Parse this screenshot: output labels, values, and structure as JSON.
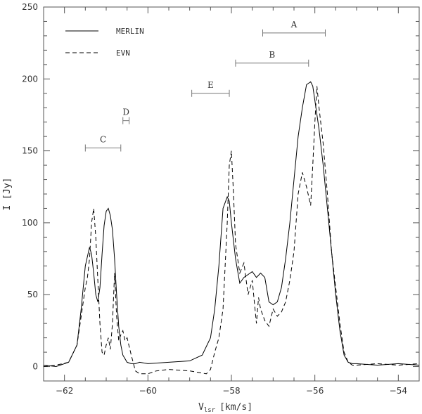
{
  "chart_data": {
    "type": "line",
    "xlabel": "V",
    "xlabel_sub": "lsr",
    "xlabel_unit": "[km/s]",
    "ylabel": "I [Jy]",
    "xlim": [
      -62.5,
      -53.5
    ],
    "ylim": [
      -10,
      250
    ],
    "x_ticks": [
      -62,
      -60,
      -58,
      -56,
      -54
    ],
    "x_tick_labels": [
      "−62",
      "−60",
      "−58",
      "−56",
      "−54"
    ],
    "y_ticks": [
      0,
      50,
      100,
      150,
      200,
      250
    ],
    "y_tick_labels": [
      "0",
      "50",
      "100",
      "150",
      "200",
      "250"
    ],
    "grid": false,
    "legend_position": "top-left",
    "series": [
      {
        "name": "MERLIN",
        "style": "solid",
        "color": "#000000",
        "x": [
          -62.5,
          -62.2,
          -61.9,
          -61.7,
          -61.6,
          -61.5,
          -61.4,
          -61.35,
          -61.3,
          -61.25,
          -61.2,
          -61.15,
          -61.1,
          -61.05,
          -61.0,
          -60.95,
          -60.9,
          -60.85,
          -60.8,
          -60.75,
          -60.7,
          -60.65,
          -60.6,
          -60.5,
          -60.4,
          -60.3,
          -60.2,
          -60.0,
          -59.5,
          -59.0,
          -58.7,
          -58.5,
          -58.4,
          -58.3,
          -58.2,
          -58.1,
          -58.05,
          -58.0,
          -57.9,
          -57.8,
          -57.7,
          -57.6,
          -57.5,
          -57.4,
          -57.3,
          -57.2,
          -57.1,
          -57.0,
          -56.9,
          -56.8,
          -56.7,
          -56.6,
          -56.5,
          -56.4,
          -56.3,
          -56.2,
          -56.1,
          -56.05,
          -56.0,
          -55.9,
          -55.8,
          -55.7,
          -55.6,
          -55.5,
          -55.4,
          -55.3,
          -55.2,
          -55.1,
          -55.0,
          -54.5,
          -54.0,
          -53.5
        ],
        "y": [
          1,
          0,
          3,
          15,
          40,
          70,
          83,
          78,
          65,
          50,
          45,
          55,
          78,
          98,
          108,
          110,
          105,
          95,
          75,
          50,
          28,
          15,
          8,
          3,
          2,
          2,
          3,
          2,
          3,
          4,
          8,
          20,
          40,
          70,
          110,
          118,
          115,
          100,
          75,
          58,
          62,
          64,
          66,
          62,
          65,
          62,
          45,
          43,
          45,
          55,
          75,
          100,
          130,
          160,
          180,
          196,
          198,
          195,
          185,
          165,
          140,
          110,
          80,
          50,
          25,
          8,
          3,
          2,
          2,
          1,
          2,
          1
        ]
      },
      {
        "name": "EVN",
        "style": "dashed",
        "color": "#000000",
        "x": [
          -62.5,
          -62.2,
          -61.9,
          -61.7,
          -61.6,
          -61.5,
          -61.45,
          -61.4,
          -61.35,
          -61.3,
          -61.25,
          -61.2,
          -61.15,
          -61.1,
          -61.05,
          -61.0,
          -60.95,
          -60.9,
          -60.85,
          -60.8,
          -60.75,
          -60.7,
          -60.65,
          -60.6,
          -60.55,
          -60.5,
          -60.4,
          -60.3,
          -60.2,
          -60.0,
          -59.8,
          -59.5,
          -59.0,
          -58.6,
          -58.5,
          -58.4,
          -58.3,
          -58.2,
          -58.15,
          -58.1,
          -58.05,
          -58.0,
          -57.95,
          -57.9,
          -57.8,
          -57.7,
          -57.6,
          -57.5,
          -57.45,
          -57.4,
          -57.35,
          -57.3,
          -57.2,
          -57.1,
          -57.0,
          -56.9,
          -56.8,
          -56.7,
          -56.6,
          -56.5,
          -56.4,
          -56.3,
          -56.2,
          -56.1,
          -56.05,
          -56.0,
          -55.95,
          -55.9,
          -55.8,
          -55.7,
          -55.6,
          -55.5,
          -55.4,
          -55.3,
          -55.2,
          -55.1,
          -55.0,
          -54.5,
          -54.0,
          -53.5
        ],
        "y": [
          0,
          1,
          3,
          15,
          35,
          55,
          62,
          75,
          100,
          110,
          90,
          60,
          30,
          10,
          8,
          15,
          20,
          12,
          30,
          65,
          35,
          18,
          22,
          25,
          18,
          20,
          8,
          -3,
          -5,
          -5,
          -3,
          -2,
          -3,
          -5,
          -2,
          10,
          20,
          40,
          70,
          100,
          140,
          150,
          120,
          85,
          65,
          72,
          50,
          60,
          45,
          30,
          48,
          40,
          32,
          28,
          40,
          35,
          38,
          45,
          60,
          80,
          120,
          135,
          125,
          112,
          140,
          170,
          195,
          180,
          155,
          120,
          80,
          55,
          30,
          10,
          3,
          1,
          1,
          2,
          1,
          2
        ]
      }
    ],
    "annotations": [
      {
        "label": "A",
        "x_start": -57.25,
        "x_end": -55.75,
        "y": 232
      },
      {
        "label": "B",
        "x_start": -57.9,
        "x_end": -56.15,
        "y": 211
      },
      {
        "label": "E",
        "x_start": -58.95,
        "x_end": -58.05,
        "y": 190
      },
      {
        "label": "D",
        "x_start": -60.6,
        "x_end": -60.45,
        "y": 171
      },
      {
        "label": "C",
        "x_start": -61.5,
        "x_end": -60.65,
        "y": 152
      }
    ]
  }
}
